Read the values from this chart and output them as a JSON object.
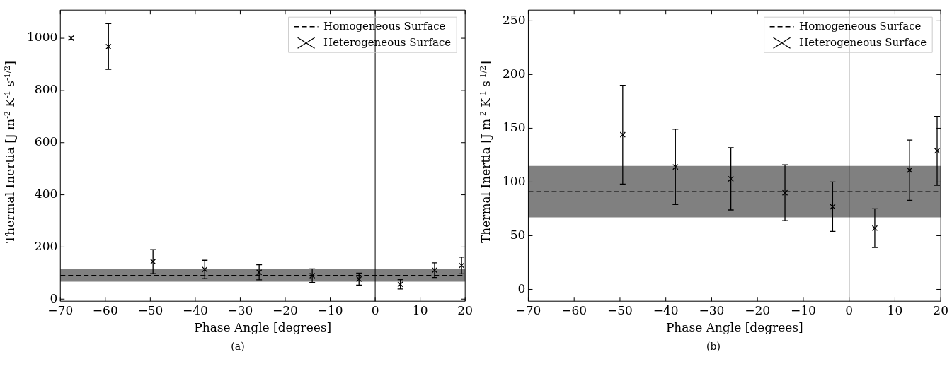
{
  "chart_data": [
    {
      "type": "scatter",
      "xlabel": "Phase Angle [degrees]",
      "ylabel": "Thermal Inertia [J m$^{-2}$ K$^{-1}$ s$^{-1/2}$]",
      "xlim": [
        -70,
        20
      ],
      "xticks": [
        -70,
        -60,
        -50,
        -40,
        -30,
        -20,
        -10,
        0,
        10,
        20
      ],
      "ylim": [
        -8,
        1108
      ],
      "yticks": [
        0,
        200,
        400,
        600,
        800,
        1000
      ],
      "grid": false,
      "legend": "top right",
      "annotations": [
        "(a)"
      ],
      "bands": [
        {
          "axis": "y",
          "from": 67,
          "to": 115,
          "color": "#808080"
        }
      ],
      "ref_lines": [
        {
          "axis": "x",
          "value": 0,
          "color": "#000000"
        }
      ],
      "series": [
        {
          "name": "Homogeneous Surface",
          "type": "line",
          "color": "#000000",
          "line_style": "dashed",
          "marker": "none",
          "x": [
            -70,
            20
          ],
          "values": [
            91,
            91
          ]
        },
        {
          "name": "Heterogeneous Surface",
          "color": "#000000",
          "marker": "cross",
          "x": [
            -67.6,
            -59.3,
            -49.4,
            -37.9,
            -25.8,
            -14.0,
            -3.6,
            5.6,
            13.2,
            19.2
          ],
          "values": [
            1000,
            968,
            144,
            114,
            103,
            90,
            77,
            57,
            111,
            129
          ],
          "errors": [
            [
              995,
              1005
            ],
            [
              881,
              1056
            ],
            [
              98,
              190
            ],
            [
              79,
              149
            ],
            [
              74,
              132
            ],
            [
              64,
              116
            ],
            [
              54,
              100
            ],
            [
              39,
              75
            ],
            [
              83,
              139
            ],
            [
              97,
              161
            ]
          ]
        }
      ]
    },
    {
      "type": "scatter",
      "xlabel": "Phase Angle [degrees]",
      "ylabel": "Thermal Inertia [J m$^{-2}$ K$^{-1}$ s$^{-1/2}$]",
      "xlim": [
        -70,
        20
      ],
      "xticks": [
        -70,
        -60,
        -50,
        -40,
        -30,
        -20,
        -10,
        0,
        10,
        20
      ],
      "ylim": [
        -11,
        260
      ],
      "yticks": [
        0,
        50,
        100,
        150,
        200,
        250
      ],
      "grid": false,
      "legend": "top right",
      "annotations": [
        "(b)"
      ],
      "bands": [
        {
          "axis": "y",
          "from": 67,
          "to": 115,
          "color": "#808080"
        }
      ],
      "ref_lines": [
        {
          "axis": "x",
          "value": 0,
          "color": "#000000"
        }
      ],
      "series": [
        {
          "name": "Homogeneous Surface",
          "type": "line",
          "color": "#000000",
          "line_style": "dashed",
          "marker": "none",
          "x": [
            -70,
            20
          ],
          "values": [
            91,
            91
          ]
        },
        {
          "name": "Heterogeneous Surface",
          "color": "#000000",
          "marker": "cross",
          "x": [
            -49.4,
            -37.9,
            -25.8,
            -14.0,
            -3.6,
            5.6,
            13.2,
            19.2
          ],
          "values": [
            144,
            114,
            103,
            90,
            77,
            57,
            111,
            129
          ],
          "errors": [
            [
              98,
              190
            ],
            [
              79,
              149
            ],
            [
              74,
              132
            ],
            [
              64,
              116
            ],
            [
              54,
              100
            ],
            [
              39,
              75
            ],
            [
              83,
              139
            ],
            [
              97,
              161
            ]
          ]
        }
      ]
    }
  ]
}
